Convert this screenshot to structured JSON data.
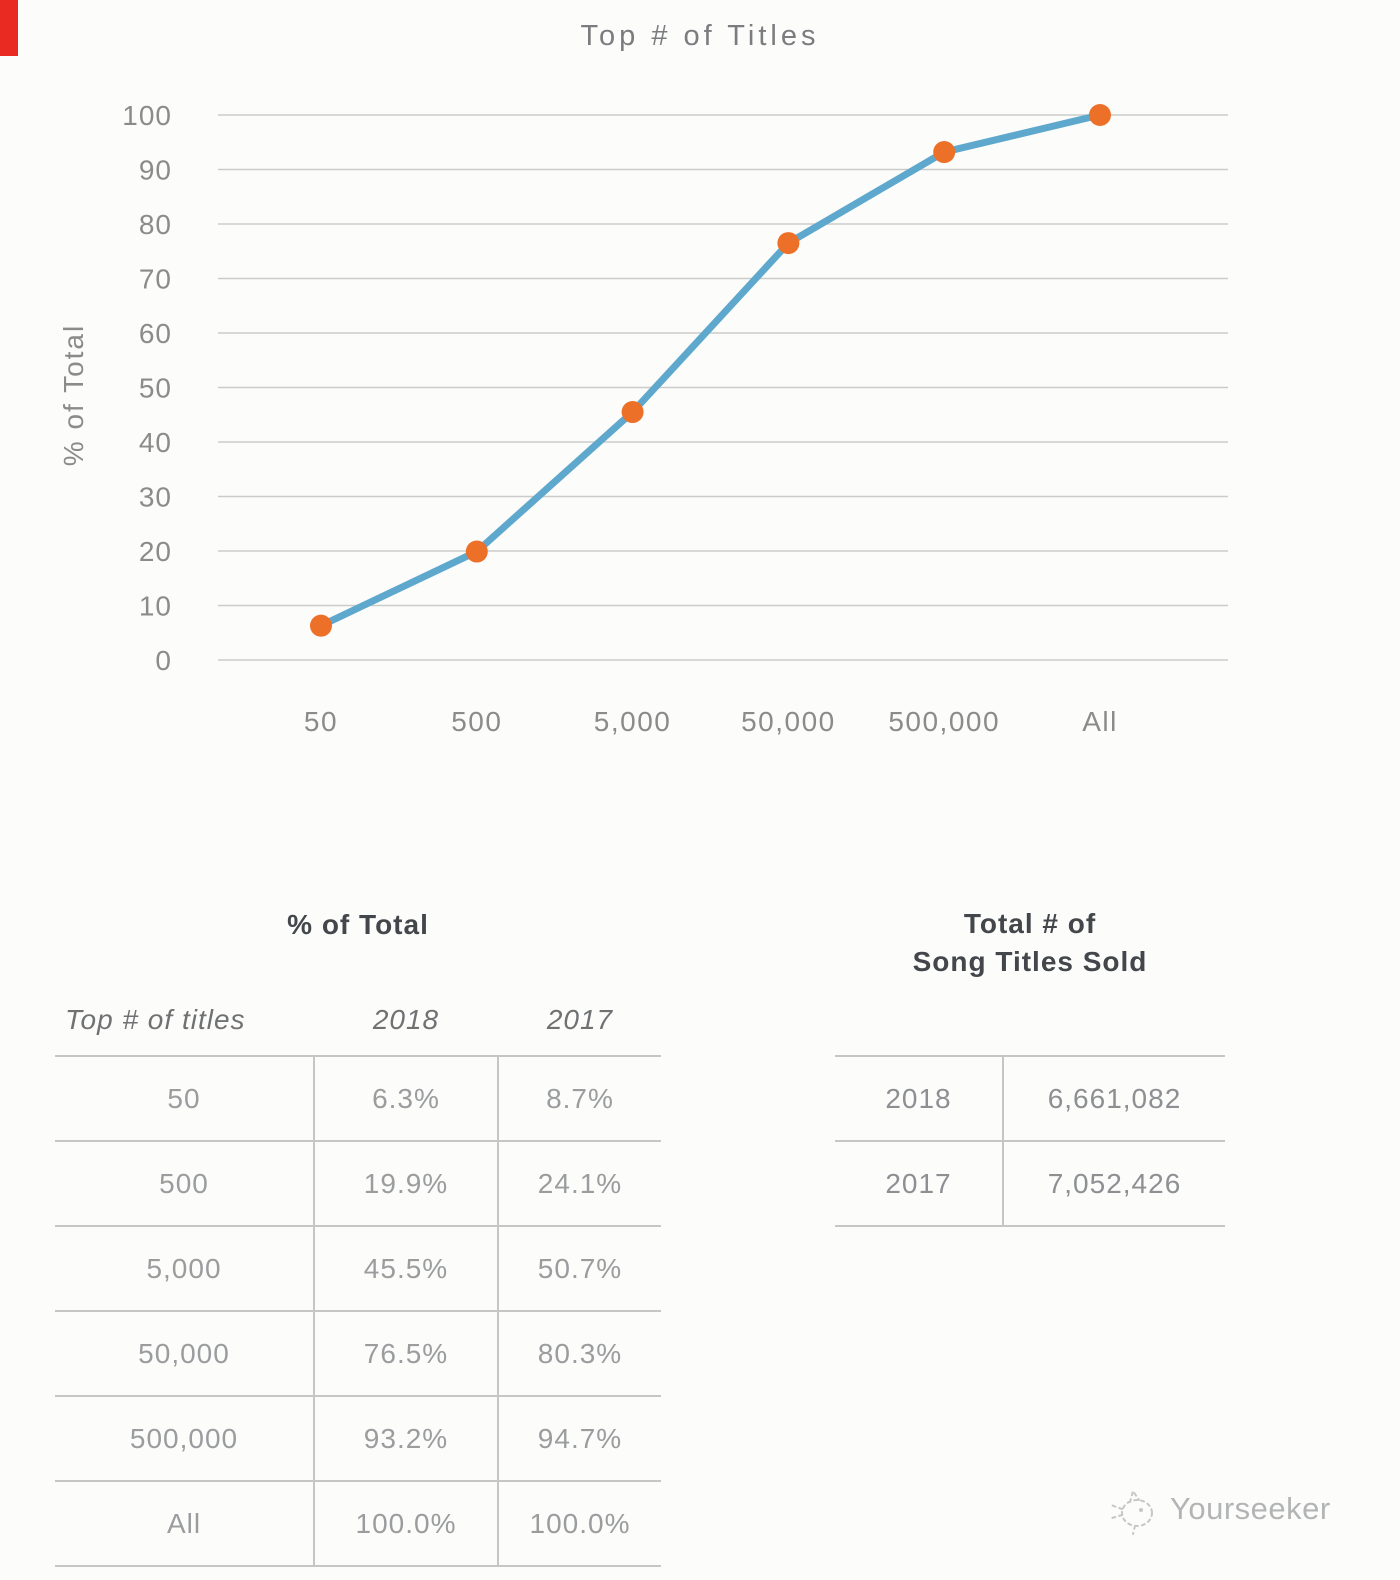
{
  "page": {
    "background": "#fcfcfb",
    "red_accent_color": "#e82a22"
  },
  "chart_data": {
    "type": "line",
    "title": "Top # of Titles",
    "ylabel": "% of Total",
    "xlabel": "",
    "categories": [
      "50",
      "500",
      "5,000",
      "50,000",
      "500,000",
      "All"
    ],
    "series": [
      {
        "name": "2018",
        "values": [
          6.3,
          19.9,
          45.5,
          76.5,
          93.2,
          100.0
        ]
      }
    ],
    "ylim": [
      0,
      100
    ],
    "yticks": [
      0,
      10,
      20,
      30,
      40,
      50,
      60,
      70,
      80,
      90,
      100
    ],
    "grid": true,
    "legend": false,
    "line_color": "#5fa8cd",
    "point_color": "#ec7028",
    "grid_color": "#cbcbcb",
    "axis_text_color": "#8b8b8b"
  },
  "left_table": {
    "title": "% of Total",
    "columns": [
      "Top # of titles",
      "2018",
      "2017"
    ],
    "rows": [
      [
        "50",
        "6.3%",
        "8.7%"
      ],
      [
        "500",
        "19.9%",
        "24.1%"
      ],
      [
        "5,000",
        "45.5%",
        "50.7%"
      ],
      [
        "50,000",
        "76.5%",
        "80.3%"
      ],
      [
        "500,000",
        "93.2%",
        "94.7%"
      ],
      [
        "All",
        "100.0%",
        "100.0%"
      ]
    ]
  },
  "right_table": {
    "title_line1": "Total # of",
    "title_line2": "Song Titles Sold",
    "rows": [
      [
        "2018",
        "6,661,082"
      ],
      [
        "2017",
        "7,052,426"
      ]
    ]
  },
  "watermark": {
    "label": "Yourseeker"
  }
}
